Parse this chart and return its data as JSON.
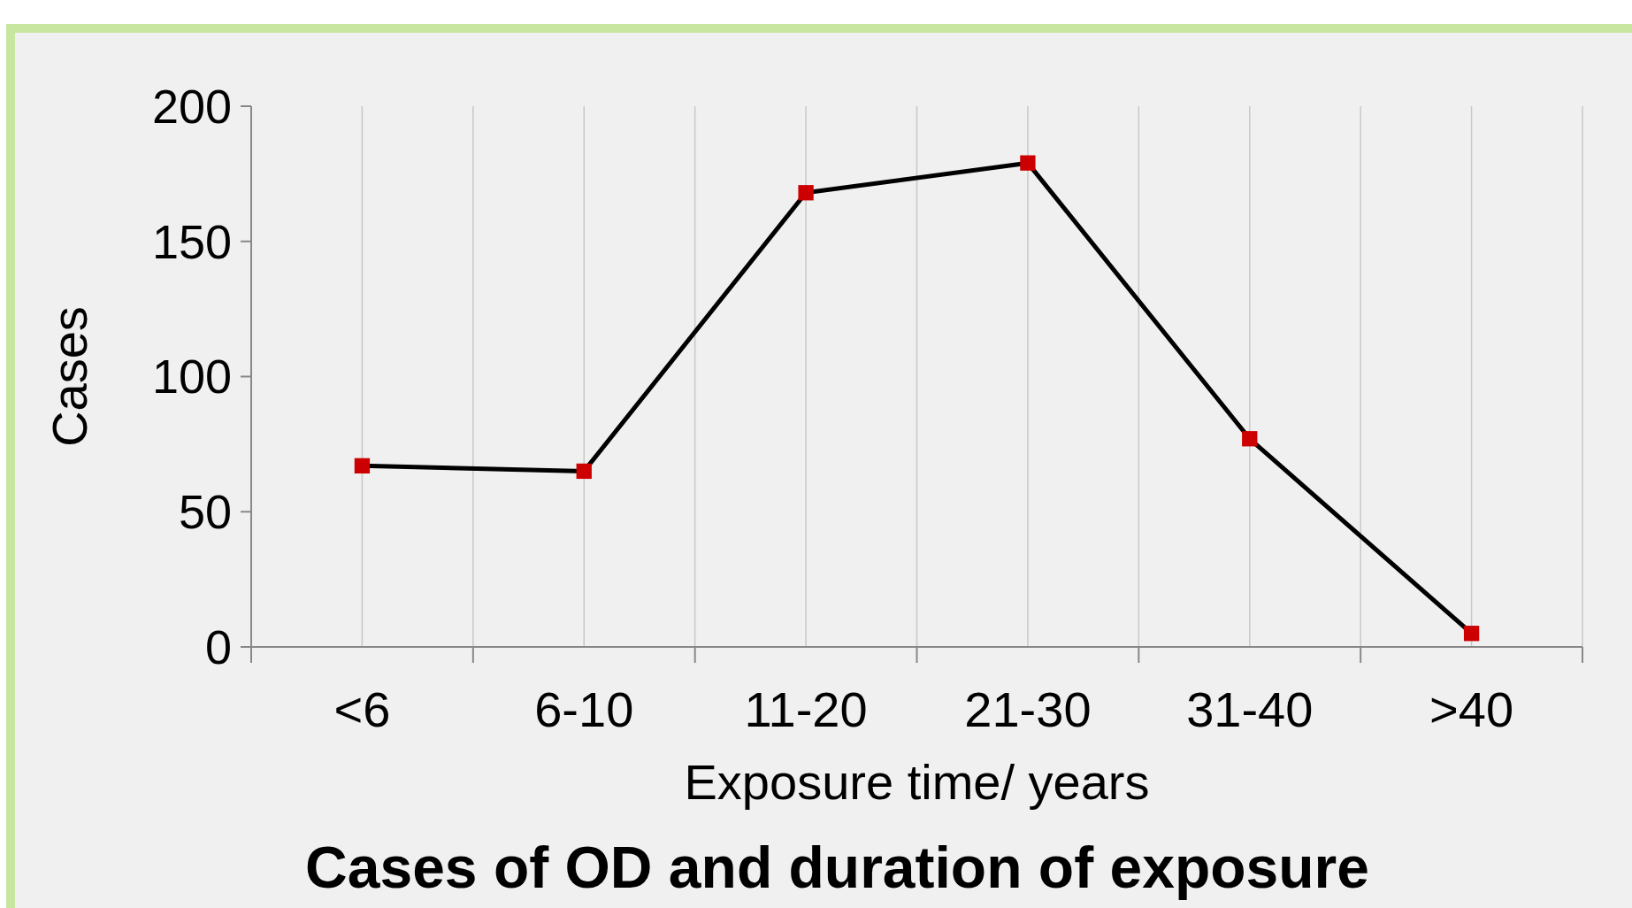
{
  "chart_data": {
    "type": "line",
    "title": "Cases of OD and duration of exposure",
    "xlabel": "Exposure time/ years",
    "ylabel": "Cases",
    "categories": [
      "<6",
      "6-10",
      "11-20",
      "21-30",
      "31-40",
      ">40"
    ],
    "series": [
      {
        "color": "#000000",
        "colors": [
          "#cc0000",
          "#cc0000",
          "#cc0000",
          "#cc0000",
          "#cc0000",
          "#cc0000"
        ],
        "values": [
          67,
          65,
          168,
          179,
          77,
          5
        ]
      }
    ],
    "ylim": [
      0,
      200
    ],
    "yticks": [
      0,
      50,
      100,
      150,
      200
    ],
    "grid": "x",
    "marker": "square"
  }
}
